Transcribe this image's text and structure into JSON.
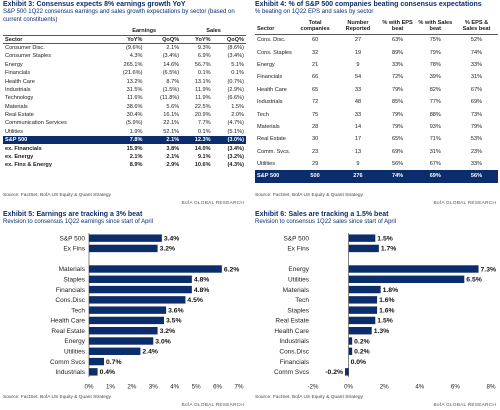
{
  "exhibit3": {
    "title": "Exhibit 3: Consensus expects 8% earnings growth YoY",
    "subtitle": "S&P 500 1Q22 consensus earnings and sales growth expectations by sector (based on current constituents)",
    "group_headers": [
      "Earnings",
      "Sales"
    ],
    "columns": [
      "Sector",
      "YoY%",
      "QoQ%",
      "YoY%",
      "QoQ%"
    ],
    "rows": [
      [
        "Consumer Disc.",
        "(9.6%)",
        "2.1%",
        "9.3%",
        "(8.6%)"
      ],
      [
        "Consumer Staples",
        "4.3%",
        "(3.4%)",
        "6.9%",
        "(3.4%)"
      ],
      [
        "Energy",
        "265.1%",
        "14.6%",
        "56.7%",
        "5.1%"
      ],
      [
        "Financials",
        "(21.6%)",
        "(6.5%)",
        "0.1%",
        "0.1%"
      ],
      [
        "Health Care",
        "13.2%",
        "8.7%",
        "13.1%",
        "(0.7%)"
      ],
      [
        "Industrials",
        "31.5%",
        "(1.5%)",
        "11.9%",
        "(2.9%)"
      ],
      [
        "Technology",
        "11.6%",
        "(11.8%)",
        "11.9%",
        "(6.6%)"
      ],
      [
        "Materials",
        "38.6%",
        "5.6%",
        "22.5%",
        "1.5%"
      ],
      [
        "Real Estate",
        "30.4%",
        "16.1%",
        "20.9%",
        "2.0%"
      ],
      [
        "Communication Services",
        "(5.9%)",
        "22.1%",
        "7.7%",
        "(4.7%)"
      ],
      [
        "Utilities",
        "1.9%",
        "52.1%",
        "0.1%",
        "(5.1%)"
      ],
      [
        "S&P 500",
        "7.8%",
        "2.1%",
        "12.3%",
        "(3.0%)"
      ],
      [
        "ex. Financials",
        "15.9%",
        "3.8%",
        "14.0%",
        "(3.4%)"
      ],
      [
        "ex. Energy",
        "2.1%",
        "2.1%",
        "9.1%",
        "(3.2%)"
      ],
      [
        "ex. Fins & Energy",
        "8.9%",
        "2.9%",
        "10.6%",
        "(4.3%)"
      ]
    ],
    "source": "Source: FactSet, BofA US Equity & Quant Strategy",
    "brand": "BofA GLOBAL RESEARCH"
  },
  "exhibit4": {
    "title": "Exhibit 4: % of S&P 500 companies beating consensus expectations",
    "subtitle": "% beating on 1Q22 EPS and sales by sector",
    "columns": [
      "Sector",
      "Total companies",
      "Number Reported",
      "% with EPS beat",
      "% with Sales beat",
      "% EPS & Sales beat"
    ],
    "rows": [
      [
        "Cons. Disc.",
        "60",
        "27",
        "63%",
        "75%",
        "52%"
      ],
      [
        "Cons. Staples",
        "32",
        "19",
        "89%",
        "79%",
        "74%"
      ],
      [
        "Energy",
        "21",
        "9",
        "33%",
        "78%",
        "33%"
      ],
      [
        "Financials",
        "66",
        "54",
        "72%",
        "39%",
        "31%"
      ],
      [
        "Health Care",
        "65",
        "33",
        "79%",
        "82%",
        "67%"
      ],
      [
        "Industrials",
        "72",
        "48",
        "85%",
        "77%",
        "69%"
      ],
      [
        "Tech",
        "75",
        "33",
        "79%",
        "88%",
        "73%"
      ],
      [
        "Materials",
        "28",
        "14",
        "79%",
        "93%",
        "79%"
      ],
      [
        "Real Estate",
        "30",
        "17",
        "65%",
        "71%",
        "53%"
      ],
      [
        "Comm. Svcs.",
        "23",
        "13",
        "69%",
        "31%",
        "23%"
      ],
      [
        "Utilities",
        "29",
        "9",
        "56%",
        "67%",
        "33%"
      ],
      [
        "S&P 500",
        "500",
        "276",
        "74%",
        "69%",
        "56%"
      ]
    ],
    "source": "Source: FactSet, BofA US Equity & Quant Strategy",
    "brand": "BofA GLOBAL RESEARCH"
  },
  "chart_data": [
    {
      "type": "bar",
      "orientation": "horizontal",
      "title": "Exhibit 5: Earnings are tracking a 3% beat",
      "subtitle": "Revision to consensus 1Q22 earnings since start of April",
      "categories": [
        "S&P 500",
        "Ex Fins",
        null,
        "Materials",
        "Staples",
        "Financials",
        "Cons.Disc",
        "Tech",
        "Health Care",
        "Real Estate",
        "Energy",
        "Utilities",
        "Comm Svcs",
        "Industrials"
      ],
      "values": [
        3.4,
        3.2,
        null,
        6.2,
        4.8,
        4.8,
        4.5,
        3.6,
        3.5,
        3.2,
        3.0,
        2.4,
        0.7,
        0.4
      ],
      "value_labels": [
        "3.4%",
        "3.2%",
        null,
        "6.2%",
        "4.8%",
        "4.8%",
        "4.5%",
        "3.6%",
        "3.5%",
        "3.2%",
        "3.0%",
        "2.4%",
        "0.7%",
        "0.4%"
      ],
      "color": "#0b2d6b",
      "xlim": [
        0,
        7
      ],
      "xticks": [
        {
          "value": 0,
          "label": "0%"
        },
        {
          "value": 1,
          "label": "1%"
        },
        {
          "value": 2,
          "label": "2%"
        },
        {
          "value": 3,
          "label": "3%"
        },
        {
          "value": 4,
          "label": "4%"
        },
        {
          "value": 5,
          "label": "5%"
        },
        {
          "value": 6,
          "label": "6%"
        },
        {
          "value": 7,
          "label": "7%"
        }
      ],
      "source": "Source: FactSet, BofA US Equity & Quant Strategy",
      "brand": "BofA GLOBAL RESEARCH"
    },
    {
      "type": "bar",
      "orientation": "horizontal",
      "title": "Exhibit 6: Sales are tracking a 1.5% beat",
      "subtitle": "Revision to consensus 1Q22 sales since start of April",
      "categories": [
        "S&P 500",
        "Ex Fins",
        null,
        "Energy",
        "Utilities",
        "Materials",
        "Tech",
        "Staples",
        "Real Estate",
        "Health Care",
        "Industrials",
        "Cons.Disc",
        "Financials",
        "Comm Svcs"
      ],
      "values": [
        1.5,
        1.7,
        null,
        7.3,
        6.5,
        1.8,
        1.6,
        1.6,
        1.5,
        1.3,
        0.2,
        0.2,
        0.0,
        -0.2
      ],
      "value_labels": [
        "1.5%",
        "1.7%",
        null,
        "7.3%",
        "6.5%",
        "1.8%",
        "1.6%",
        "1.6%",
        "1.5%",
        "1.3%",
        "0.2%",
        "0.2%",
        "0.0%",
        "-0.2%"
      ],
      "color": "#0b2d6b",
      "xlim": [
        -2,
        8
      ],
      "xticks": [
        {
          "value": -2,
          "label": "-2%"
        },
        {
          "value": 0,
          "label": "0%"
        },
        {
          "value": 2,
          "label": "2%"
        },
        {
          "value": 4,
          "label": "4%"
        },
        {
          "value": 6,
          "label": "6%"
        },
        {
          "value": 8,
          "label": "8%"
        }
      ],
      "source": "Source: FactSet, BofA US Equity & Quant Strategy",
      "brand": "BofA GLOBAL RESEARCH"
    }
  ]
}
